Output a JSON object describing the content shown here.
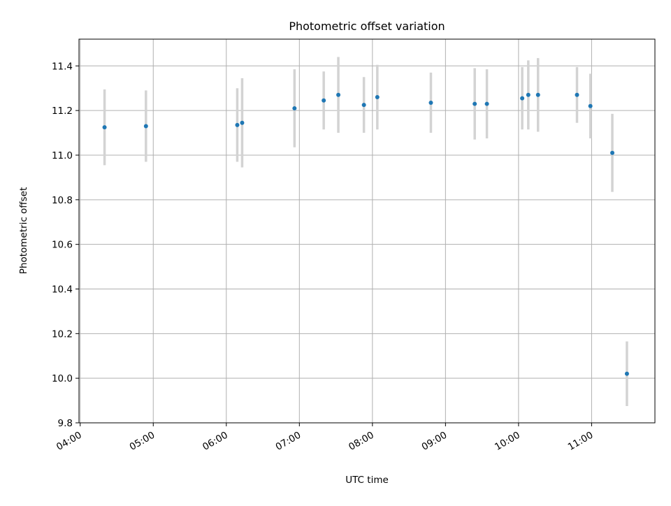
{
  "chart_data": {
    "type": "scatter",
    "title": "Photometric offset variation",
    "xlabel": "UTC time",
    "ylabel": "Photometric offset",
    "x_is_time": true,
    "xlim": [
      "03:59",
      "11:52"
    ],
    "ylim": [
      9.8,
      11.52
    ],
    "x_ticks": [
      "04:00",
      "05:00",
      "06:00",
      "07:00",
      "08:00",
      "09:00",
      "10:00",
      "11:00"
    ],
    "y_ticks": [
      9.8,
      10.0,
      10.2,
      10.4,
      10.6,
      10.8,
      11.0,
      11.2,
      11.4
    ],
    "y_tick_labels": [
      "9.8",
      "10.0",
      "10.2",
      "10.4",
      "10.6",
      "10.8",
      "11.0",
      "11.2",
      "11.4"
    ],
    "grid": true,
    "colors": {
      "point": "#1f77b4",
      "errorbar": "#d3d3d3",
      "grid": "#b0b0b0",
      "axes": "#000000"
    },
    "points": [
      {
        "t": "04:20",
        "y": 11.125,
        "err": 0.17
      },
      {
        "t": "04:54",
        "y": 11.13,
        "err": 0.16
      },
      {
        "t": "06:09",
        "y": 11.135,
        "err": 0.165
      },
      {
        "t": "06:13",
        "y": 11.145,
        "err": 0.2
      },
      {
        "t": "06:56",
        "y": 11.21,
        "err": 0.175
      },
      {
        "t": "07:20",
        "y": 11.245,
        "err": 0.13
      },
      {
        "t": "07:32",
        "y": 11.27,
        "err": 0.17
      },
      {
        "t": "07:53",
        "y": 11.225,
        "err": 0.125
      },
      {
        "t": "08:04",
        "y": 11.26,
        "err": 0.145
      },
      {
        "t": "08:48",
        "y": 11.235,
        "err": 0.135
      },
      {
        "t": "09:24",
        "y": 11.23,
        "err": 0.16
      },
      {
        "t": "09:34",
        "y": 11.23,
        "err": 0.155
      },
      {
        "t": "10:03",
        "y": 11.255,
        "err": 0.14
      },
      {
        "t": "10:08",
        "y": 11.27,
        "err": 0.155
      },
      {
        "t": "10:16",
        "y": 11.27,
        "err": 0.165
      },
      {
        "t": "10:48",
        "y": 11.27,
        "err": 0.125
      },
      {
        "t": "10:59",
        "y": 11.22,
        "err": 0.145
      },
      {
        "t": "11:17",
        "y": 11.01,
        "err": 0.175
      },
      {
        "t": "11:29",
        "y": 10.02,
        "err": 0.145
      }
    ]
  }
}
